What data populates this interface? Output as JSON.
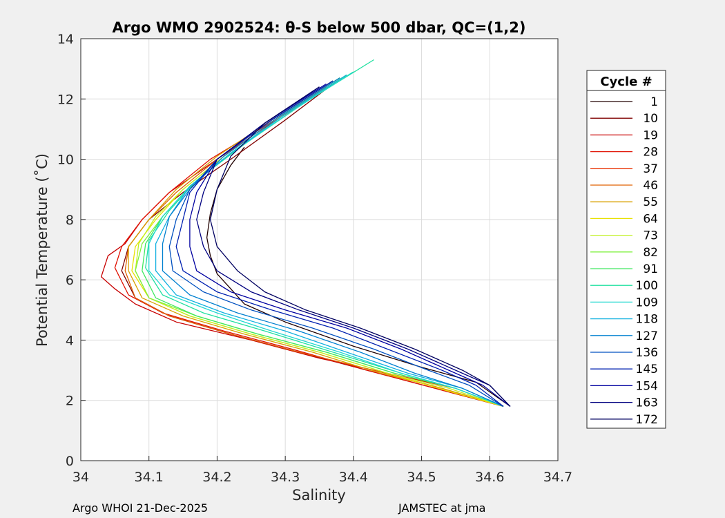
{
  "chart_data": {
    "type": "line",
    "title": "Argo WMO 2902524: θ-S below 500 dbar,  QC=(1,2)",
    "xlabel": "Salinity",
    "ylabel": "Potential Temperature (˚C)",
    "xlim": [
      34.0,
      34.7
    ],
    "ylim": [
      0,
      14
    ],
    "xticks": [
      "34",
      "34.1",
      "34.2",
      "34.3",
      "34.4",
      "34.5",
      "34.6",
      "34.7"
    ],
    "yticks": [
      "0",
      "2",
      "4",
      "6",
      "8",
      "10",
      "12",
      "14"
    ],
    "grid": true,
    "legend_position": "right",
    "legend_title": "Cycle #",
    "legend_entries": [
      {
        "label": "1",
        "color": "#200000"
      },
      {
        "label": "10",
        "color": "#800000"
      },
      {
        "label": "19",
        "color": "#c80000"
      },
      {
        "label": "28",
        "color": "#e01000"
      },
      {
        "label": "37",
        "color": "#e83000"
      },
      {
        "label": "46",
        "color": "#e06000"
      },
      {
        "label": "55",
        "color": "#d8a000"
      },
      {
        "label": "64",
        "color": "#e8e000"
      },
      {
        "label": "73",
        "color": "#c0f020"
      },
      {
        "label": "82",
        "color": "#80f040"
      },
      {
        "label": "91",
        "color": "#40e860"
      },
      {
        "label": "100",
        "color": "#20e0a0"
      },
      {
        "label": "109",
        "color": "#20d8d0"
      },
      {
        "label": "118",
        "color": "#10b0e0"
      },
      {
        "label": "127",
        "color": "#0080d0"
      },
      {
        "label": "136",
        "color": "#0050c0"
      },
      {
        "label": "145",
        "color": "#0020b0"
      },
      {
        "label": "154",
        "color": "#0000a0"
      },
      {
        "label": "163",
        "color": "#000080"
      },
      {
        "label": "172",
        "color": "#000060"
      }
    ],
    "series": [
      {
        "color": "#200000",
        "x": [
          34.24,
          34.22,
          34.2,
          34.19,
          34.185,
          34.19,
          34.2,
          34.22,
          34.24,
          34.3,
          34.4,
          34.5,
          34.58,
          34.63
        ],
        "y": [
          10.4,
          9.8,
          9.0,
          8.2,
          7.4,
          6.8,
          6.2,
          5.7,
          5.2,
          4.6,
          3.8,
          3.1,
          2.6,
          1.8
        ]
      },
      {
        "color": "#800000",
        "x": [
          34.37,
          34.3,
          34.22,
          34.15,
          34.1,
          34.07,
          34.06,
          34.08,
          34.13,
          34.22,
          34.32,
          34.42,
          34.52,
          34.62
        ],
        "y": [
          12.5,
          11.3,
          10.0,
          8.9,
          8.0,
          7.1,
          6.3,
          5.4,
          4.8,
          4.2,
          3.6,
          3.0,
          2.4,
          1.8
        ]
      },
      {
        "color": "#c80000",
        "x": [
          34.37,
          34.28,
          34.2,
          34.13,
          34.09,
          34.065,
          34.04,
          34.03,
          34.05,
          34.08,
          34.14,
          34.25,
          34.35,
          34.45,
          34.55,
          34.62
        ],
        "y": [
          12.5,
          11.2,
          10.0,
          8.9,
          8.0,
          7.2,
          6.8,
          6.1,
          5.7,
          5.2,
          4.6,
          4.0,
          3.4,
          2.9,
          2.4,
          1.8
        ]
      },
      {
        "color": "#e01000",
        "x": [
          34.36,
          34.27,
          34.19,
          34.13,
          34.09,
          34.06,
          34.05,
          34.07,
          34.12,
          34.21,
          34.31,
          34.42,
          34.52,
          34.62
        ],
        "y": [
          12.4,
          11.1,
          10.0,
          8.9,
          8.0,
          7.1,
          6.4,
          5.5,
          4.9,
          4.3,
          3.7,
          3.0,
          2.4,
          1.8
        ]
      },
      {
        "color": "#e06000",
        "x": [
          34.37,
          34.28,
          34.2,
          34.14,
          34.1,
          34.07,
          34.065,
          34.08,
          34.13,
          34.22,
          34.32,
          34.43,
          34.53,
          34.62
        ],
        "y": [
          12.6,
          11.3,
          10.0,
          8.9,
          8.0,
          7.1,
          6.3,
          5.4,
          4.8,
          4.2,
          3.6,
          3.0,
          2.4,
          1.8
        ]
      },
      {
        "color": "#d8a000",
        "x": [
          34.37,
          34.28,
          34.2,
          34.14,
          34.1,
          34.07,
          34.07,
          34.09,
          34.15,
          34.24,
          34.34,
          34.44,
          34.53,
          34.62
        ],
        "y": [
          12.6,
          11.3,
          10.1,
          9.0,
          8.0,
          7.1,
          6.3,
          5.4,
          4.8,
          4.2,
          3.6,
          2.9,
          2.4,
          1.8
        ]
      },
      {
        "color": "#e8e000",
        "x": [
          34.38,
          34.29,
          34.21,
          34.15,
          34.11,
          34.08,
          34.075,
          34.1,
          34.16,
          34.25,
          34.35,
          34.45,
          34.54,
          34.62
        ],
        "y": [
          12.7,
          11.4,
          10.1,
          9.0,
          8.0,
          7.1,
          6.3,
          5.4,
          4.8,
          4.2,
          3.6,
          2.9,
          2.3,
          1.8
        ]
      },
      {
        "color": "#c0f020",
        "x": [
          34.38,
          34.29,
          34.21,
          34.15,
          34.11,
          34.085,
          34.08,
          34.1,
          34.16,
          34.25,
          34.35,
          34.45,
          34.54,
          34.62
        ],
        "y": [
          12.7,
          11.4,
          10.1,
          9.0,
          8.1,
          7.2,
          6.3,
          5.4,
          4.8,
          4.2,
          3.6,
          2.9,
          2.4,
          1.8
        ]
      },
      {
        "color": "#80f040",
        "x": [
          34.39,
          34.3,
          34.22,
          34.16,
          34.12,
          34.09,
          34.08,
          34.1,
          34.17,
          34.26,
          34.36,
          34.46,
          34.55,
          34.62
        ],
        "y": [
          12.8,
          11.5,
          10.2,
          9.1,
          8.1,
          7.2,
          6.3,
          5.4,
          4.8,
          4.2,
          3.6,
          2.9,
          2.4,
          1.8
        ]
      },
      {
        "color": "#40e860",
        "x": [
          34.4,
          34.3,
          34.22,
          34.16,
          34.12,
          34.095,
          34.09,
          34.11,
          34.17,
          34.26,
          34.36,
          34.46,
          34.55,
          34.62
        ],
        "y": [
          12.9,
          11.5,
          10.2,
          9.1,
          8.1,
          7.2,
          6.3,
          5.4,
          4.8,
          4.2,
          3.6,
          2.9,
          2.4,
          1.8
        ]
      },
      {
        "color": "#20e0a0",
        "x": [
          34.43,
          34.33,
          34.24,
          34.17,
          34.13,
          34.1,
          34.095,
          34.12,
          34.18,
          34.27,
          34.37,
          34.47,
          34.55,
          34.62
        ],
        "y": [
          13.3,
          11.9,
          10.5,
          9.3,
          8.3,
          7.3,
          6.4,
          5.5,
          4.9,
          4.3,
          3.6,
          2.9,
          2.4,
          1.8
        ]
      },
      {
        "color": "#20d8d0",
        "x": [
          34.4,
          34.31,
          34.22,
          34.16,
          34.12,
          34.1,
          34.1,
          34.13,
          34.2,
          34.28,
          34.38,
          34.47,
          34.55,
          34.62
        ],
        "y": [
          12.9,
          11.6,
          10.2,
          9.1,
          8.1,
          7.2,
          6.3,
          5.5,
          4.9,
          4.3,
          3.6,
          2.9,
          2.4,
          1.8
        ]
      },
      {
        "color": "#10b0e0",
        "x": [
          34.39,
          34.3,
          34.22,
          34.16,
          34.13,
          34.11,
          34.11,
          34.14,
          34.21,
          34.3,
          34.39,
          34.48,
          34.56,
          34.62
        ],
        "y": [
          12.8,
          11.5,
          10.2,
          9.1,
          8.1,
          7.2,
          6.3,
          5.5,
          4.9,
          4.3,
          3.6,
          2.9,
          2.4,
          1.8
        ]
      },
      {
        "color": "#0080d0",
        "x": [
          34.38,
          34.29,
          34.21,
          34.16,
          34.13,
          34.12,
          34.12,
          34.16,
          34.23,
          34.32,
          34.41,
          34.49,
          34.56,
          34.62
        ],
        "y": [
          12.7,
          11.4,
          10.1,
          9.0,
          8.1,
          7.2,
          6.3,
          5.5,
          4.9,
          4.3,
          3.6,
          2.9,
          2.4,
          1.8
        ]
      },
      {
        "color": "#0050c0",
        "x": [
          34.37,
          34.28,
          34.2,
          34.16,
          34.14,
          34.13,
          34.135,
          34.18,
          34.25,
          34.34,
          34.43,
          34.51,
          34.57,
          34.62
        ],
        "y": [
          12.6,
          11.3,
          10.0,
          9.0,
          8.0,
          7.1,
          6.3,
          5.6,
          5.0,
          4.4,
          3.7,
          3.0,
          2.5,
          1.8
        ]
      },
      {
        "color": "#0020b0",
        "x": [
          34.37,
          34.28,
          34.2,
          34.16,
          34.15,
          34.14,
          34.15,
          34.2,
          34.28,
          34.37,
          34.45,
          34.53,
          34.58,
          34.62
        ],
        "y": [
          12.6,
          11.3,
          10.0,
          8.9,
          8.0,
          7.1,
          6.3,
          5.6,
          5.0,
          4.4,
          3.7,
          3.0,
          2.5,
          1.8
        ]
      },
      {
        "color": "#0000a0",
        "x": [
          34.36,
          34.27,
          34.2,
          34.17,
          34.16,
          34.16,
          34.17,
          34.22,
          34.3,
          34.39,
          34.47,
          34.54,
          34.59,
          34.63
        ],
        "y": [
          12.5,
          11.2,
          10.0,
          8.9,
          8.0,
          7.1,
          6.3,
          5.6,
          5.0,
          4.4,
          3.7,
          3.0,
          2.5,
          1.8
        ]
      },
      {
        "color": "#000080",
        "x": [
          34.35,
          34.27,
          34.2,
          34.18,
          34.17,
          34.18,
          34.2,
          34.25,
          34.32,
          34.4,
          34.48,
          34.55,
          34.6,
          34.63
        ],
        "y": [
          12.4,
          11.2,
          10.0,
          8.9,
          8.0,
          7.1,
          6.3,
          5.6,
          5.0,
          4.4,
          3.7,
          3.0,
          2.5,
          1.8
        ]
      },
      {
        "color": "#000060",
        "x": [
          34.35,
          34.27,
          34.22,
          34.2,
          34.19,
          34.2,
          34.23,
          34.27,
          34.33,
          34.41,
          34.49,
          34.56,
          34.6,
          34.63
        ],
        "y": [
          12.4,
          11.2,
          10.1,
          9.0,
          8.0,
          7.1,
          6.3,
          5.6,
          5.0,
          4.4,
          3.7,
          3.0,
          2.5,
          1.8
        ]
      }
    ]
  },
  "footer": {
    "left": "Argo WHOI 21-Dec-2025",
    "right": "JAMSTEC at jma"
  }
}
